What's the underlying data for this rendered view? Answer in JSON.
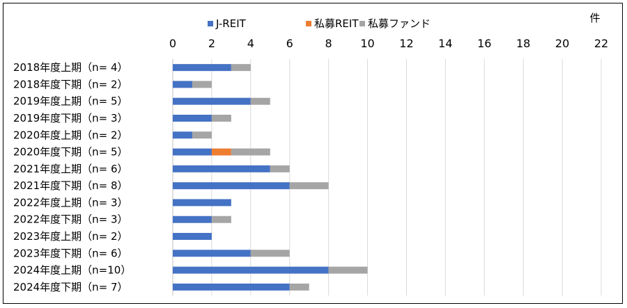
{
  "chart_data": {
    "type": "bar",
    "orientation": "horizontal",
    "stacked": true,
    "unit_label": "件",
    "xlim": [
      0,
      22
    ],
    "xticks": [
      "0",
      "2",
      "4",
      "6",
      "8",
      "10",
      "12",
      "14",
      "16",
      "18",
      "20",
      "22"
    ],
    "grid": true,
    "legend_position": "top",
    "categories": [
      "2018年度上期（n=  4）",
      "2018年度下期（n=  2）",
      "2019年度上期（n=  5）",
      "2019年度下期（n=  3）",
      "2020年度上期（n=  2）",
      "2020年度下期（n=  5）",
      "2021年度上期（n=  6）",
      "2021年度下期（n=  8）",
      "2022年度上期（n=  3）",
      "2022年度下期（n=  3）",
      "2023年度上期（n=  2）",
      "2023年度下期（n=  6）",
      "2024年度上期（n=10）",
      "2024年度下期（n=  7）"
    ],
    "series": [
      {
        "name": "J-REIT",
        "color": "#4472C4",
        "values": [
          3,
          1,
          4,
          2,
          1,
          2,
          5,
          6,
          3,
          2,
          2,
          4,
          8,
          6
        ]
      },
      {
        "name": "私募REIT",
        "color": "#ED7D31",
        "values": [
          0,
          0,
          0,
          0,
          0,
          1,
          0,
          0,
          0,
          0,
          0,
          0,
          0,
          0
        ]
      },
      {
        "name": "私募ファンド",
        "color": "#A5A5A5",
        "values": [
          1,
          1,
          1,
          1,
          1,
          2,
          1,
          2,
          0,
          1,
          0,
          2,
          2,
          1
        ]
      }
    ]
  }
}
